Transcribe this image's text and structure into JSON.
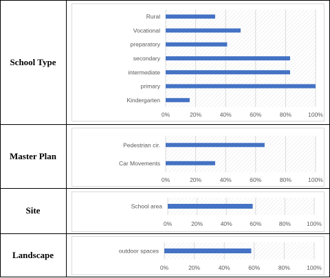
{
  "rows": [
    {
      "label": "School Type"
    },
    {
      "label": "Master Plan"
    },
    {
      "label": "Site"
    },
    {
      "label": "Landscape"
    }
  ],
  "chart_data": [
    {
      "type": "bar",
      "orientation": "horizontal",
      "categories": [
        "Rural",
        "Vocational",
        "preparatory",
        "secondary",
        "intermediate",
        "primary",
        "Kindergarten"
      ],
      "values": [
        0.33,
        0.5,
        0.41,
        0.83,
        0.83,
        1.0,
        0.16
      ],
      "xlim": [
        0,
        1
      ],
      "xticks": [
        "0%",
        "20%",
        "40%",
        "60%",
        "80%",
        "100%"
      ],
      "grid": true,
      "bar_color": "#4472c4"
    },
    {
      "type": "bar",
      "orientation": "horizontal",
      "categories": [
        "Pedestrian cir.",
        "Car Movements"
      ],
      "values": [
        0.66,
        0.33
      ],
      "xlim": [
        0,
        1
      ],
      "xticks": [
        "0%",
        "20%",
        "40%",
        "60%",
        "80%",
        "100%"
      ],
      "grid": true,
      "bar_color": "#4472c4"
    },
    {
      "type": "bar",
      "orientation": "horizontal",
      "categories": [
        "School area"
      ],
      "values": [
        0.58
      ],
      "xlim": [
        0,
        1
      ],
      "xticks": [
        "0%",
        "20%",
        "40%",
        "60%",
        "80%",
        "100%"
      ],
      "grid": true,
      "bar_color": "#4472c4"
    },
    {
      "type": "bar",
      "orientation": "horizontal",
      "categories": [
        "outdoor spaces"
      ],
      "values": [
        0.58
      ],
      "xlim": [
        0,
        1
      ],
      "xticks": [
        "0%",
        "20%",
        "40%",
        "60%",
        "80%",
        "100%"
      ],
      "grid": true,
      "bar_color": "#4472c4"
    }
  ]
}
